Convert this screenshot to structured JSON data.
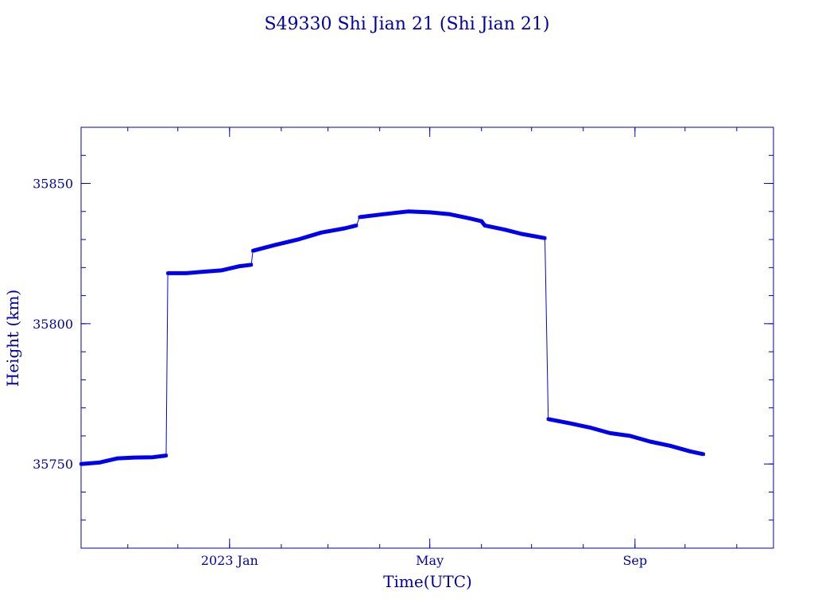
{
  "chart_data": {
    "type": "line",
    "title": "S49330 Shi Jian 21  (Shi Jian 21)",
    "xlabel": "Time(UTC)",
    "ylabel": "Height (km)",
    "xlim": [
      "2022-10-04",
      "2023-11-23"
    ],
    "ylim": [
      35720,
      35870
    ],
    "x_ticks": [
      {
        "label": "2023 Jan",
        "date": "2023-01-01"
      },
      {
        "label": "May",
        "date": "2023-05-01"
      },
      {
        "label": "Sep",
        "date": "2023-09-01"
      }
    ],
    "y_ticks": [
      {
        "label": "35750",
        "value": 35750
      },
      {
        "label": "35800",
        "value": 35800
      },
      {
        "label": "35850",
        "value": 35850
      }
    ],
    "grid": false,
    "line_color": "#0000ee",
    "axis_color": "#0000aa",
    "series": [
      {
        "values": [
          {
            "x": "2022-10-04",
            "y": 35750.0
          },
          {
            "x": "2022-10-15",
            "y": 35750.5
          },
          {
            "x": "2022-10-26",
            "y": 35752.0
          },
          {
            "x": "2022-11-05",
            "y": 35752.3
          },
          {
            "x": "2022-11-16",
            "y": 35752.4
          },
          {
            "x": "2022-11-24",
            "y": 35753.0
          },
          {
            "x": "2022-11-25",
            "y": 35818.0
          },
          {
            "x": "2022-12-06",
            "y": 35818.0
          },
          {
            "x": "2022-12-16",
            "y": 35818.5
          },
          {
            "x": "2022-12-27",
            "y": 35819.0
          },
          {
            "x": "2023-01-07",
            "y": 35820.5
          },
          {
            "x": "2023-01-14",
            "y": 35821.0
          },
          {
            "x": "2023-01-15",
            "y": 35826.0
          },
          {
            "x": "2023-01-28",
            "y": 35828.0
          },
          {
            "x": "2023-02-11",
            "y": 35830.0
          },
          {
            "x": "2023-02-25",
            "y": 35832.5
          },
          {
            "x": "2023-03-11",
            "y": 35834.0
          },
          {
            "x": "2023-03-18",
            "y": 35835.0
          },
          {
            "x": "2023-03-20",
            "y": 35838.0
          },
          {
            "x": "2023-04-03",
            "y": 35839.0
          },
          {
            "x": "2023-04-18",
            "y": 35840.0
          },
          {
            "x": "2023-05-01",
            "y": 35839.7
          },
          {
            "x": "2023-05-13",
            "y": 35839.0
          },
          {
            "x": "2023-05-25",
            "y": 35837.5
          },
          {
            "x": "2023-06-01",
            "y": 35836.5
          },
          {
            "x": "2023-06-03",
            "y": 35835.0
          },
          {
            "x": "2023-06-15",
            "y": 35833.5
          },
          {
            "x": "2023-06-25",
            "y": 35832.0
          },
          {
            "x": "2023-07-09",
            "y": 35830.5
          },
          {
            "x": "2023-07-11",
            "y": 35766.0
          },
          {
            "x": "2023-07-24",
            "y": 35764.5
          },
          {
            "x": "2023-08-05",
            "y": 35763.0
          },
          {
            "x": "2023-08-17",
            "y": 35761.0
          },
          {
            "x": "2023-08-29",
            "y": 35760.0
          },
          {
            "x": "2023-09-10",
            "y": 35758.0
          },
          {
            "x": "2023-09-22",
            "y": 35756.5
          },
          {
            "x": "2023-10-04",
            "y": 35754.5
          },
          {
            "x": "2023-10-12",
            "y": 35753.5
          }
        ]
      }
    ]
  }
}
